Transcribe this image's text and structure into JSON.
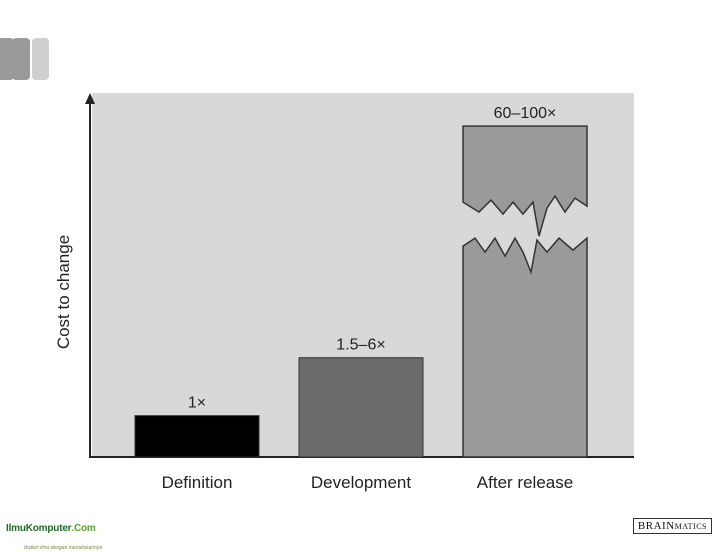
{
  "chart_data": {
    "type": "bar",
    "title": "",
    "xlabel": "",
    "ylabel": "Cost to change",
    "categories": [
      "Definition",
      "Development",
      "After release"
    ],
    "values": [
      1,
      2.4,
      8
    ],
    "data_labels": [
      "1×",
      "1.5–6×",
      "60–100×"
    ],
    "bar_colors": [
      "#000000",
      "#6b6b6b",
      "#9a9a9a"
    ],
    "broken_axis_category": "After release",
    "ylim": [
      0,
      8.8
    ],
    "grid": false,
    "legend": "none"
  },
  "footer": {
    "left_brand": "IlmuKomputer",
    "left_brand_suffix": ".Com",
    "left_tagline": "Ikatlah ilmu dengan menuliskannya",
    "right_logo_a": "BRAIN",
    "right_logo_b": "MATICS"
  },
  "colors": {
    "plot_background": "#d8d8d8",
    "axis": "#222222"
  }
}
